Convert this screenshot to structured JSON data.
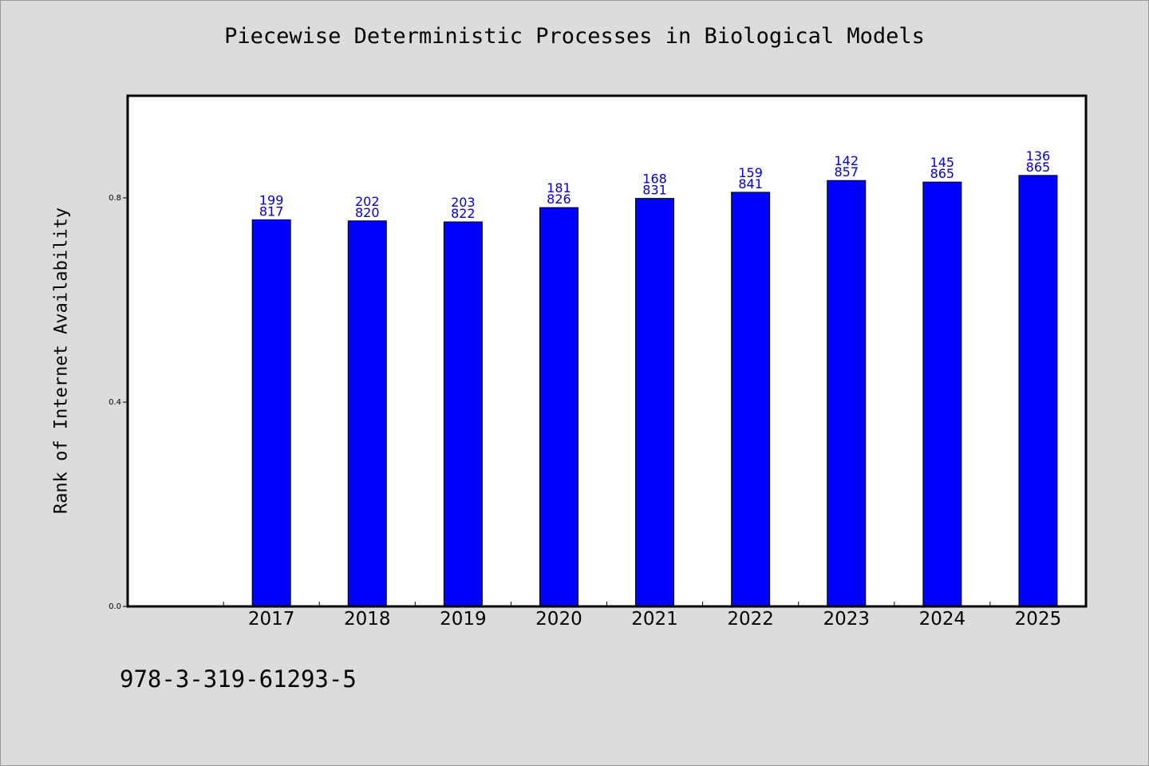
{
  "chart_data": {
    "type": "bar",
    "title": "Piecewise Deterministic Processes in Biological Models",
    "xlabel": "",
    "ylabel": "Rank of Internet Availability",
    "categories": [
      "2017",
      "2018",
      "2019",
      "2020",
      "2021",
      "2022",
      "2023",
      "2024",
      "2025"
    ],
    "values": [
      0.757,
      0.755,
      0.753,
      0.781,
      0.799,
      0.811,
      0.834,
      0.831,
      0.844
    ],
    "data_labels": [
      [
        "199",
        "817"
      ],
      [
        "202",
        "820"
      ],
      [
        "203",
        "822"
      ],
      [
        "181",
        "826"
      ],
      [
        "168",
        "831"
      ],
      [
        "159",
        "841"
      ],
      [
        "142",
        "857"
      ],
      [
        "145",
        "865"
      ],
      [
        "136",
        "865"
      ]
    ],
    "y_ticks": [
      "0.0",
      "0.4",
      "0.8"
    ],
    "ylim": [
      0,
      1.0
    ],
    "grid": false,
    "legend": "none",
    "colors": {
      "bar": "#0000ff",
      "data_label": "#0000cc",
      "background": "#dcdcdc",
      "plot_area": "#ffffff"
    }
  },
  "footer": {
    "isbn": "978-3-319-61293-5"
  }
}
